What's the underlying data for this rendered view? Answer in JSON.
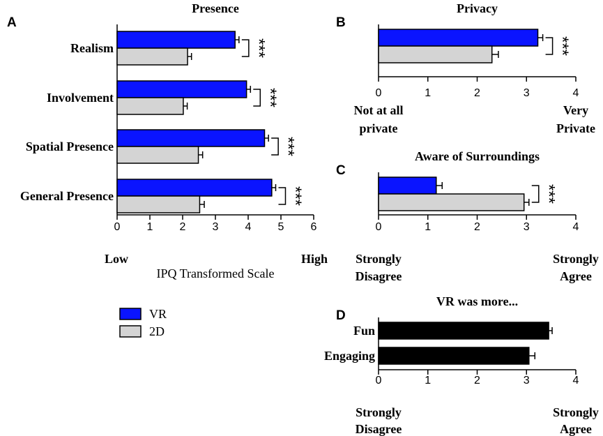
{
  "colors": {
    "vr": "#0a14ff",
    "twod": "#d4d4d4",
    "single": "#000000",
    "axis": "#000000"
  },
  "chart_data": [
    {
      "panel": "A",
      "type": "bar",
      "orientation": "horizontal",
      "title": "Presence",
      "categories": [
        "Realism",
        "Involvement",
        "Spatial Presence",
        "General Presence"
      ],
      "series": [
        {
          "name": "VR",
          "values": [
            3.6,
            3.95,
            4.5,
            4.72
          ],
          "errors": [
            0.12,
            0.12,
            0.12,
            0.12
          ]
        },
        {
          "name": "2D",
          "values": [
            2.15,
            2.02,
            2.48,
            2.52
          ],
          "errors": [
            0.12,
            0.12,
            0.13,
            0.14
          ]
        }
      ],
      "xlim": [
        0,
        6
      ],
      "ticks": [
        "0",
        "1",
        "2",
        "3",
        "4",
        "5",
        "6"
      ],
      "xlabel": "IPQ Transformed Scale",
      "anchor_low": "Low",
      "anchor_high": "High",
      "significance": [
        "***",
        "***",
        "***",
        "***"
      ]
    },
    {
      "panel": "B",
      "type": "bar",
      "orientation": "horizontal",
      "title": "Privacy",
      "categories": [
        ""
      ],
      "series": [
        {
          "name": "VR",
          "values": [
            3.23
          ],
          "errors": [
            0.1
          ]
        },
        {
          "name": "2D",
          "values": [
            2.3
          ],
          "errors": [
            0.13
          ]
        }
      ],
      "xlim": [
        0,
        4
      ],
      "ticks": [
        "0",
        "1",
        "2",
        "3",
        "4"
      ],
      "anchor_low": [
        "Not at all",
        "private"
      ],
      "anchor_high": [
        "Very",
        "Private"
      ],
      "significance": [
        "***"
      ]
    },
    {
      "panel": "C",
      "type": "bar",
      "orientation": "horizontal",
      "title": "Aware of Surroundings",
      "categories": [
        ""
      ],
      "series": [
        {
          "name": "VR",
          "values": [
            1.17
          ],
          "errors": [
            0.12
          ]
        },
        {
          "name": "2D",
          "values": [
            2.95
          ],
          "errors": [
            0.1
          ]
        }
      ],
      "xlim": [
        0,
        4
      ],
      "ticks": [
        "0",
        "1",
        "2",
        "3",
        "4"
      ],
      "anchor_low": [
        "Strongly",
        "Disagree"
      ],
      "anchor_high": [
        "Strongly",
        "Agree"
      ],
      "significance": [
        "***"
      ]
    },
    {
      "panel": "D",
      "type": "bar",
      "orientation": "horizontal",
      "title": "VR was more...",
      "categories": [
        "Fun",
        "Engaging"
      ],
      "series": [
        {
          "name": "",
          "values": [
            3.45,
            3.05
          ],
          "errors": [
            0.07,
            0.12
          ]
        }
      ],
      "xlim": [
        0,
        4
      ],
      "ticks": [
        "0",
        "1",
        "2",
        "3",
        "4"
      ],
      "anchor_low": [
        "Strongly",
        "Disagree"
      ],
      "anchor_high": [
        "Strongly",
        "Agree"
      ],
      "significance": []
    }
  ],
  "legend": {
    "items": [
      {
        "label": "VR",
        "color_key": "vr"
      },
      {
        "label": "2D",
        "color_key": "twod"
      }
    ]
  }
}
